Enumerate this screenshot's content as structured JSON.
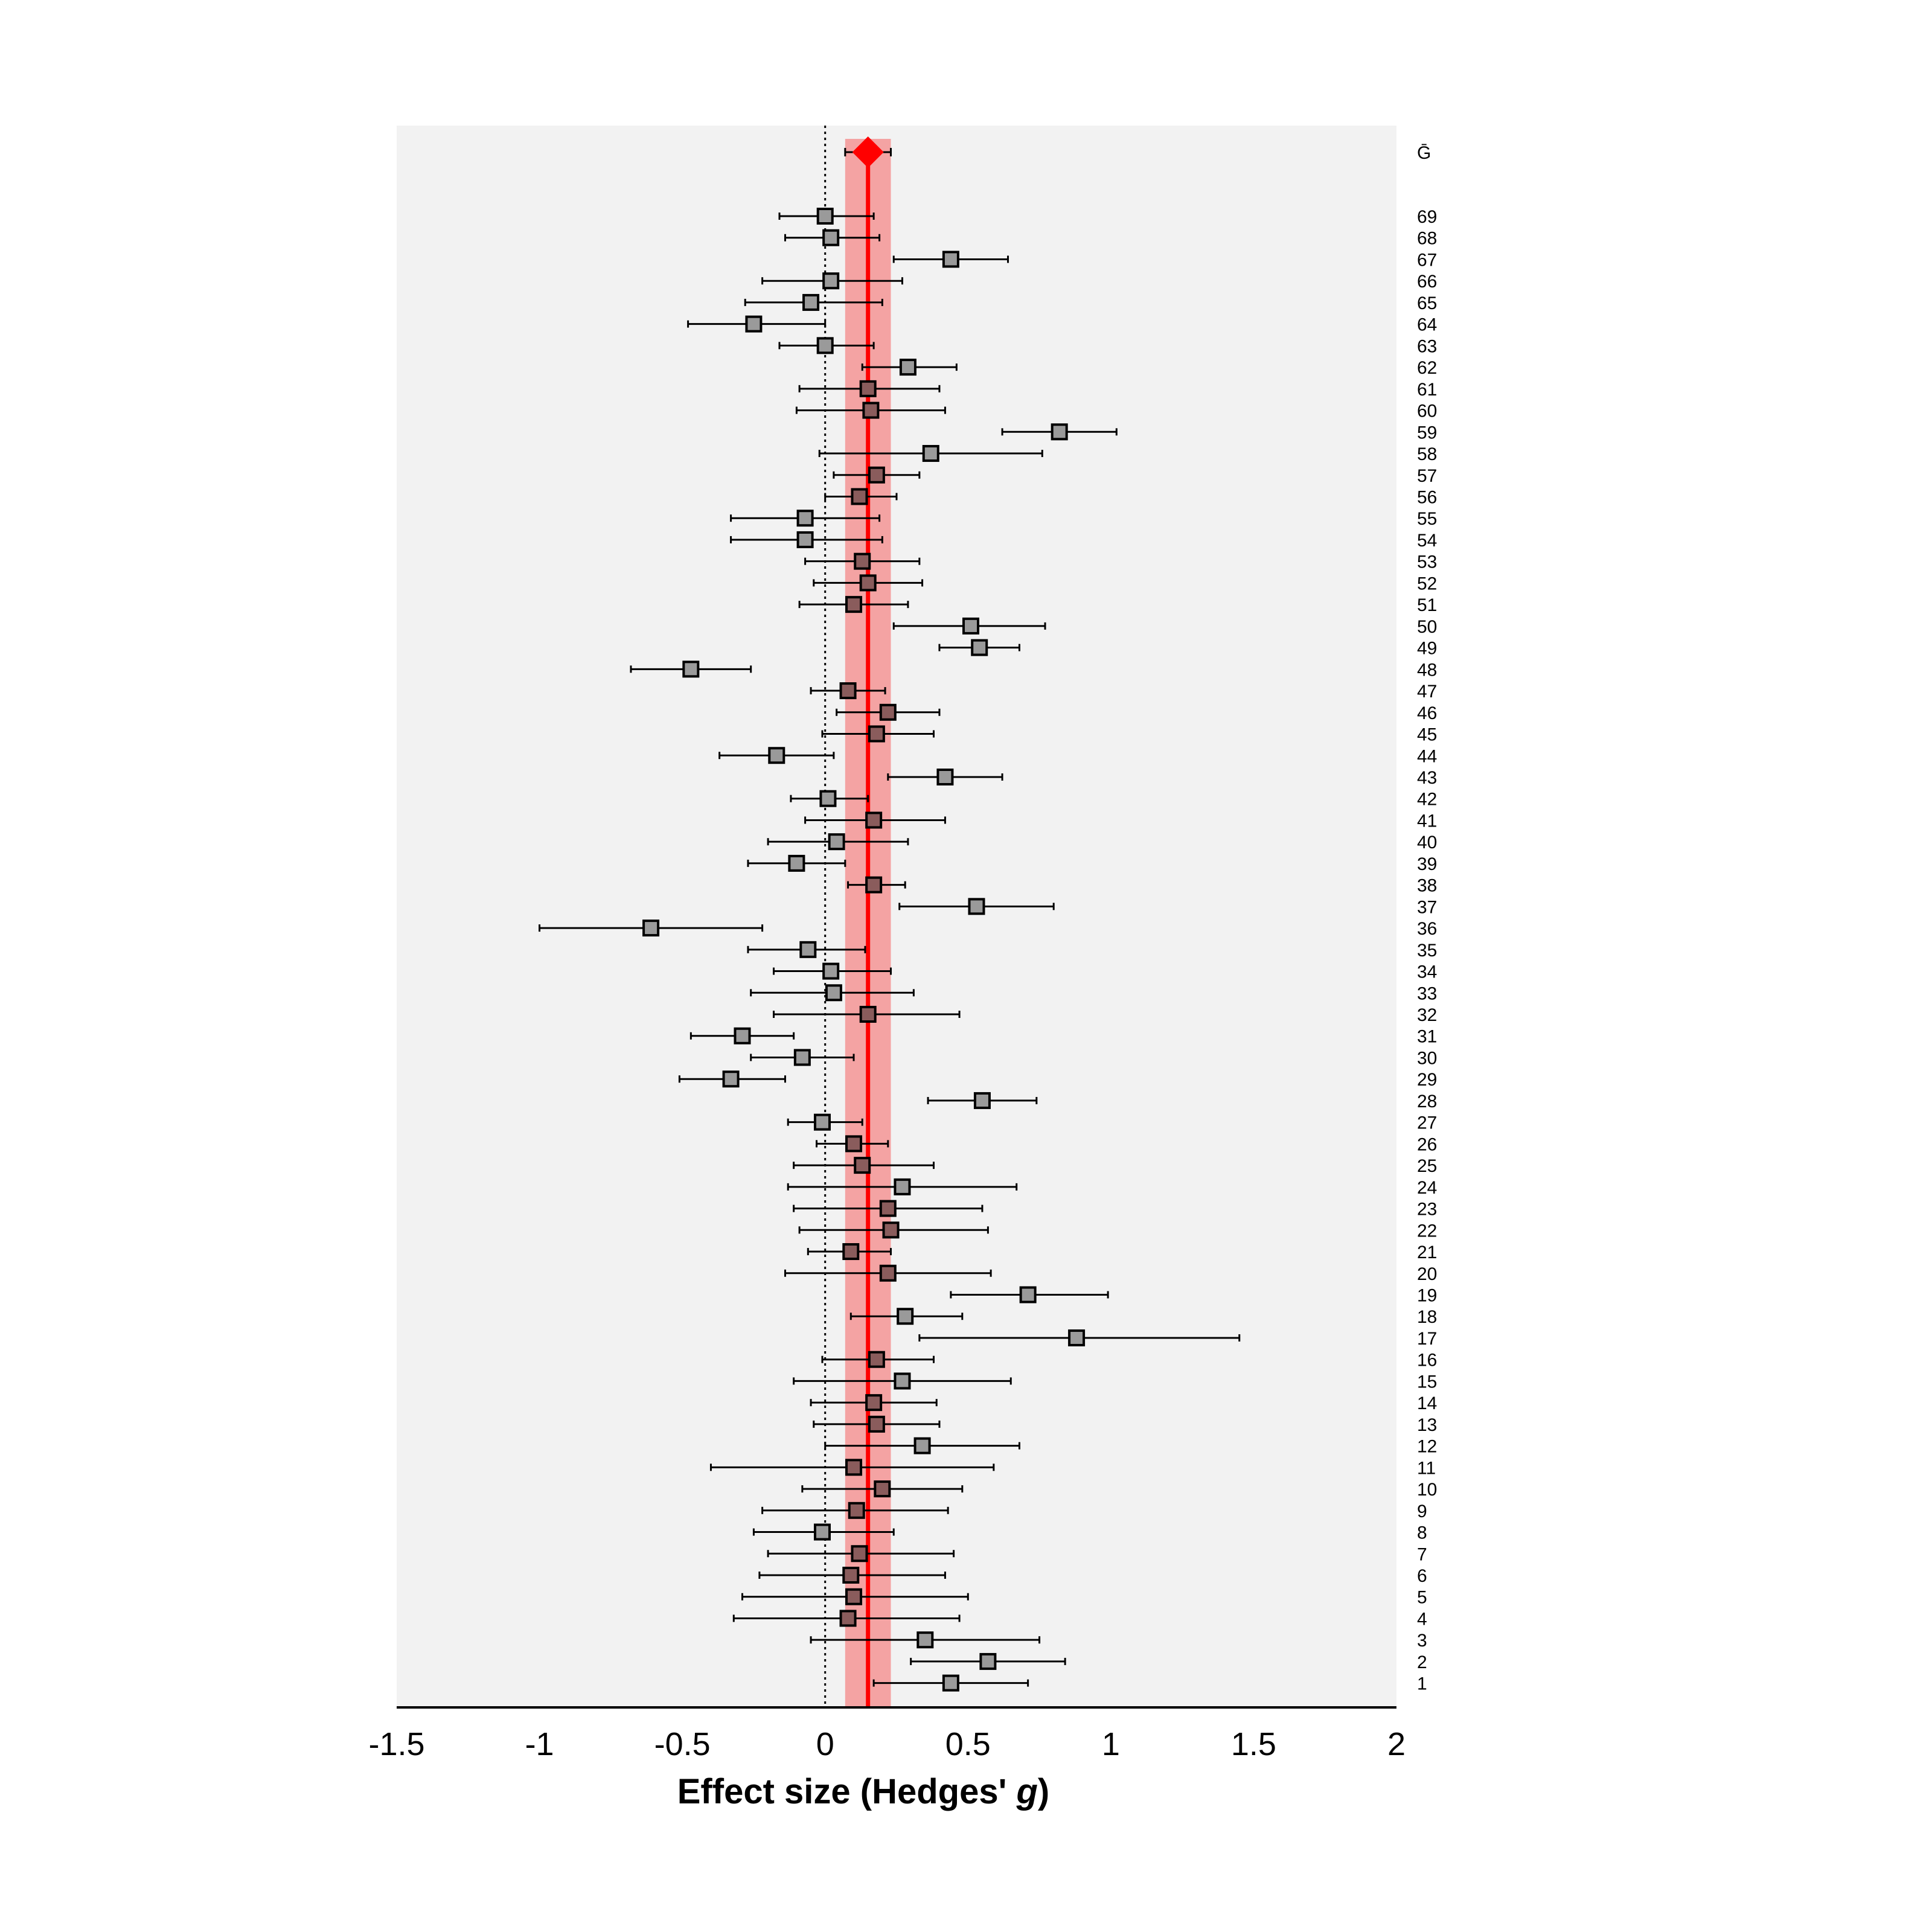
{
  "chart_data": {
    "type": "forest",
    "title": "",
    "xlabel": "Effect size (Hedges' g)",
    "xlabel_parts": [
      "Effect size (Hedges' ",
      "g",
      ")"
    ],
    "xlim": [
      -1.5,
      2
    ],
    "xticks": [
      -1.5,
      -1,
      -0.5,
      0,
      0.5,
      1,
      1.5,
      2
    ],
    "xtick_labels": [
      "-1.5",
      "-1",
      "-0.5",
      "0",
      "0.5",
      "1",
      "1.5",
      "2"
    ],
    "reference_line": 0,
    "grid": false,
    "pooled": {
      "label": "Ḡ",
      "g": 0.15,
      "lo": 0.07,
      "hi": 0.23
    },
    "studies": [
      {
        "label": "69",
        "g": 0.0,
        "lo": -0.16,
        "hi": 0.17
      },
      {
        "label": "68",
        "g": 0.02,
        "lo": -0.14,
        "hi": 0.19
      },
      {
        "label": "67",
        "g": 0.44,
        "lo": 0.24,
        "hi": 0.64
      },
      {
        "label": "66",
        "g": 0.02,
        "lo": -0.22,
        "hi": 0.27
      },
      {
        "label": "65",
        "g": -0.05,
        "lo": -0.28,
        "hi": 0.2
      },
      {
        "label": "64",
        "g": -0.25,
        "lo": -0.48,
        "hi": 0.0
      },
      {
        "label": "63",
        "g": 0.0,
        "lo": -0.16,
        "hi": 0.17
      },
      {
        "label": "62",
        "g": 0.29,
        "lo": 0.13,
        "hi": 0.46
      },
      {
        "label": "61",
        "g": 0.15,
        "lo": -0.09,
        "hi": 0.4
      },
      {
        "label": "60",
        "g": 0.16,
        "lo": -0.1,
        "hi": 0.42
      },
      {
        "label": "59",
        "g": 0.82,
        "lo": 0.62,
        "hi": 1.02
      },
      {
        "label": "58",
        "g": 0.37,
        "lo": -0.02,
        "hi": 0.76
      },
      {
        "label": "57",
        "g": 0.18,
        "lo": 0.03,
        "hi": 0.33
      },
      {
        "label": "56",
        "g": 0.12,
        "lo": 0.0,
        "hi": 0.25
      },
      {
        "label": "55",
        "g": -0.07,
        "lo": -0.33,
        "hi": 0.19
      },
      {
        "label": "54",
        "g": -0.07,
        "lo": -0.33,
        "hi": 0.2
      },
      {
        "label": "53",
        "g": 0.13,
        "lo": -0.07,
        "hi": 0.33
      },
      {
        "label": "52",
        "g": 0.15,
        "lo": -0.04,
        "hi": 0.34
      },
      {
        "label": "51",
        "g": 0.1,
        "lo": -0.09,
        "hi": 0.29
      },
      {
        "label": "50",
        "g": 0.51,
        "lo": 0.24,
        "hi": 0.77
      },
      {
        "label": "49",
        "g": 0.54,
        "lo": 0.4,
        "hi": 0.68
      },
      {
        "label": "48",
        "g": -0.47,
        "lo": -0.68,
        "hi": -0.26
      },
      {
        "label": "47",
        "g": 0.08,
        "lo": -0.05,
        "hi": 0.21
      },
      {
        "label": "46",
        "g": 0.22,
        "lo": 0.04,
        "hi": 0.4
      },
      {
        "label": "45",
        "g": 0.18,
        "lo": -0.01,
        "hi": 0.38
      },
      {
        "label": "44",
        "g": -0.17,
        "lo": -0.37,
        "hi": 0.03
      },
      {
        "label": "43",
        "g": 0.42,
        "lo": 0.22,
        "hi": 0.62
      },
      {
        "label": "42",
        "g": 0.01,
        "lo": -0.12,
        "hi": 0.15
      },
      {
        "label": "41",
        "g": 0.17,
        "lo": -0.07,
        "hi": 0.42
      },
      {
        "label": "40",
        "g": 0.04,
        "lo": -0.2,
        "hi": 0.29
      },
      {
        "label": "39",
        "g": -0.1,
        "lo": -0.27,
        "hi": 0.07
      },
      {
        "label": "38",
        "g": 0.17,
        "lo": 0.08,
        "hi": 0.28
      },
      {
        "label": "37",
        "g": 0.53,
        "lo": 0.26,
        "hi": 0.8
      },
      {
        "label": "36",
        "g": -0.61,
        "lo": -1.0,
        "hi": -0.22
      },
      {
        "label": "35",
        "g": -0.06,
        "lo": -0.27,
        "hi": 0.14
      },
      {
        "label": "34",
        "g": 0.02,
        "lo": -0.18,
        "hi": 0.23
      },
      {
        "label": "33",
        "g": 0.03,
        "lo": -0.26,
        "hi": 0.31
      },
      {
        "label": "32",
        "g": 0.15,
        "lo": -0.18,
        "hi": 0.47
      },
      {
        "label": "31",
        "g": -0.29,
        "lo": -0.47,
        "hi": -0.11
      },
      {
        "label": "30",
        "g": -0.08,
        "lo": -0.26,
        "hi": 0.1
      },
      {
        "label": "29",
        "g": -0.33,
        "lo": -0.51,
        "hi": -0.14
      },
      {
        "label": "28",
        "g": 0.55,
        "lo": 0.36,
        "hi": 0.74
      },
      {
        "label": "27",
        "g": -0.01,
        "lo": -0.13,
        "hi": 0.13
      },
      {
        "label": "26",
        "g": 0.1,
        "lo": -0.03,
        "hi": 0.22
      },
      {
        "label": "25",
        "g": 0.13,
        "lo": -0.11,
        "hi": 0.38
      },
      {
        "label": "24",
        "g": 0.27,
        "lo": -0.13,
        "hi": 0.67
      },
      {
        "label": "23",
        "g": 0.22,
        "lo": -0.11,
        "hi": 0.55
      },
      {
        "label": "22",
        "g": 0.23,
        "lo": -0.09,
        "hi": 0.57
      },
      {
        "label": "21",
        "g": 0.09,
        "lo": -0.06,
        "hi": 0.23
      },
      {
        "label": "20",
        "g": 0.22,
        "lo": -0.14,
        "hi": 0.58
      },
      {
        "label": "19",
        "g": 0.71,
        "lo": 0.44,
        "hi": 0.99
      },
      {
        "label": "18",
        "g": 0.28,
        "lo": 0.09,
        "hi": 0.48
      },
      {
        "label": "17",
        "g": 0.88,
        "lo": 0.33,
        "hi": 1.45
      },
      {
        "label": "16",
        "g": 0.18,
        "lo": -0.01,
        "hi": 0.38
      },
      {
        "label": "15",
        "g": 0.27,
        "lo": -0.11,
        "hi": 0.65
      },
      {
        "label": "14",
        "g": 0.17,
        "lo": -0.05,
        "hi": 0.39
      },
      {
        "label": "13",
        "g": 0.18,
        "lo": -0.04,
        "hi": 0.4
      },
      {
        "label": "12",
        "g": 0.34,
        "lo": 0.0,
        "hi": 0.68
      },
      {
        "label": "11",
        "g": 0.1,
        "lo": -0.4,
        "hi": 0.59
      },
      {
        "label": "10",
        "g": 0.2,
        "lo": -0.08,
        "hi": 0.48
      },
      {
        "label": "9",
        "g": 0.11,
        "lo": -0.22,
        "hi": 0.43
      },
      {
        "label": "8",
        "g": -0.01,
        "lo": -0.25,
        "hi": 0.24
      },
      {
        "label": "7",
        "g": 0.12,
        "lo": -0.2,
        "hi": 0.45
      },
      {
        "label": "6",
        "g": 0.09,
        "lo": -0.23,
        "hi": 0.42
      },
      {
        "label": "5",
        "g": 0.1,
        "lo": -0.29,
        "hi": 0.5
      },
      {
        "label": "4",
        "g": 0.08,
        "lo": -0.32,
        "hi": 0.47
      },
      {
        "label": "3",
        "g": 0.35,
        "lo": -0.05,
        "hi": 0.75
      },
      {
        "label": "2",
        "g": 0.57,
        "lo": 0.3,
        "hi": 0.84
      },
      {
        "label": "1",
        "g": 0.44,
        "lo": 0.17,
        "hi": 0.71
      }
    ],
    "colors": {
      "plot_background": "#f2f2f2",
      "pooled_line": "#ff0000",
      "pooled_band": "#f4a3a3",
      "marker_fill": "#9a9a9a",
      "marker_stroke": "#000000",
      "whisker": "#000000",
      "reference_line": "#000000"
    }
  }
}
